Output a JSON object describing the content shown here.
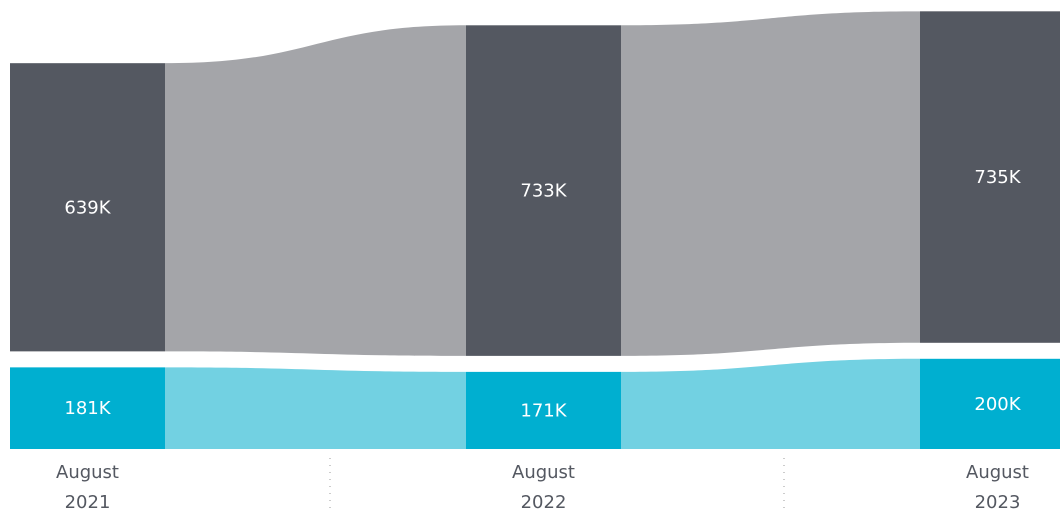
{
  "chart_data": {
    "type": "stacked_flow",
    "categories": [
      "August 2021",
      "August 2022",
      "August 2023"
    ],
    "series": [
      {
        "name": null,
        "color": "#00afd0",
        "flow_color": "#72d1e2",
        "values": [
          181000,
          171000,
          200000
        ],
        "value_labels": [
          "181K",
          "171K",
          "200K"
        ]
      },
      {
        "name": null,
        "color": "#545861",
        "flow_color": "#a4a5a9",
        "values": [
          639000,
          733000,
          735000
        ],
        "value_labels": [
          "639K",
          "733K",
          "735K"
        ]
      }
    ]
  }
}
